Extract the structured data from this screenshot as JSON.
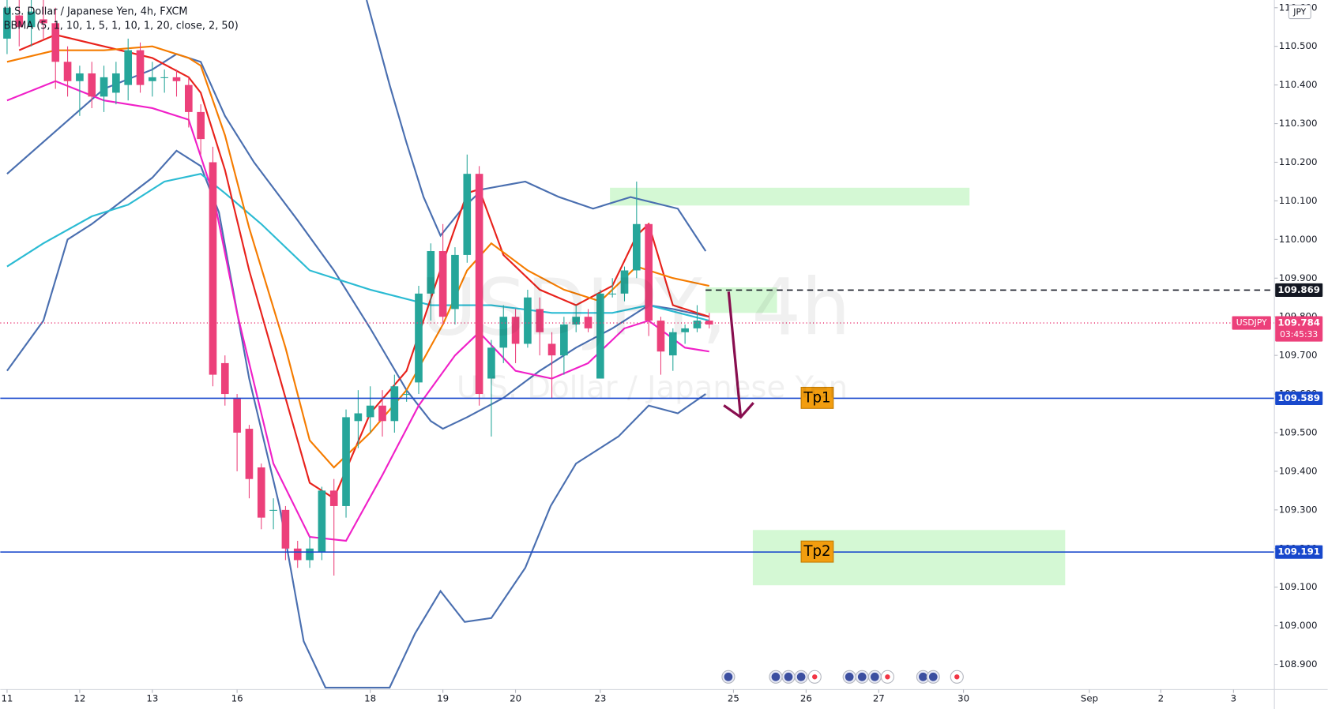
{
  "chart_data": {
    "type": "candlestick",
    "title": "U.S. Dollar / Japanese Yen, 4h, FXCM",
    "indicator": "BBMA (5, 1, 10, 1, 5, 1, 10, 1, 20, close, 2, 50)",
    "watermark": "USDJPY, 4h",
    "watermark_subtitle": "U.S. Dollar / Japanese Yen",
    "currency": "JPY",
    "up_color": "#26a69a",
    "down_color": "#ec407a",
    "xlim": [
      -0.56,
      104.68
    ],
    "ylim": [
      108.835,
      110.62
    ],
    "yticks": [
      {
        "value": 108.9,
        "label": "108.900"
      },
      {
        "value": 109.0,
        "label": "109.000"
      },
      {
        "value": 109.1,
        "label": "109.100"
      },
      {
        "value": 109.2,
        "label": "109.200"
      },
      {
        "value": 109.3,
        "label": "109.300"
      },
      {
        "value": 109.4,
        "label": "109.400"
      },
      {
        "value": 109.5,
        "label": "109.500"
      },
      {
        "value": 109.6,
        "label": "109.600"
      },
      {
        "value": 109.7,
        "label": "109.700"
      },
      {
        "value": 109.8,
        "label": "109.800"
      },
      {
        "value": 109.9,
        "label": "109.900"
      },
      {
        "value": 110.0,
        "label": "110.000"
      },
      {
        "value": 110.1,
        "label": "110.100"
      },
      {
        "value": 110.2,
        "label": "110.200"
      },
      {
        "value": 110.3,
        "label": "110.300"
      },
      {
        "value": 110.4,
        "label": "110.400"
      },
      {
        "value": 110.5,
        "label": "110.500"
      },
      {
        "value": 110.6,
        "label": "110.600"
      }
    ],
    "xticks": [
      {
        "value": 0,
        "label": "11"
      },
      {
        "value": 6,
        "label": "12"
      },
      {
        "value": 12,
        "label": "13"
      },
      {
        "value": 19,
        "label": "16"
      },
      {
        "value": 30,
        "label": "18"
      },
      {
        "value": 36,
        "label": "19"
      },
      {
        "value": 42,
        "label": "20"
      },
      {
        "value": 49,
        "label": "23"
      },
      {
        "value": 60,
        "label": "25"
      },
      {
        "value": 66,
        "label": "26"
      },
      {
        "value": 72,
        "label": "27"
      },
      {
        "value": 79,
        "label": "30"
      },
      {
        "value": 89.4,
        "label": "Sep"
      },
      {
        "value": 95.3,
        "label": "2"
      },
      {
        "value": 101.3,
        "label": "3"
      }
    ],
    "x": [
      0,
      1,
      2,
      3,
      4,
      5,
      6,
      7,
      8,
      9,
      10,
      11,
      12,
      13,
      14,
      15,
      16,
      17,
      18,
      19,
      20,
      21,
      22,
      23,
      24,
      25,
      26,
      27,
      28,
      29,
      30,
      31,
      32,
      33,
      34,
      35,
      36,
      37,
      38,
      39,
      40,
      41,
      42,
      43,
      44,
      45,
      46,
      47,
      48,
      49,
      50,
      51,
      52,
      53,
      54,
      55,
      56,
      57,
      58
    ],
    "open": [
      110.52,
      110.58,
      110.55,
      110.57,
      110.56,
      110.46,
      110.41,
      110.43,
      110.37,
      110.38,
      110.4,
      110.49,
      110.41,
      110.42,
      110.42,
      110.4,
      110.33,
      110.2,
      109.68,
      109.59,
      109.51,
      109.41,
      109.3,
      109.3,
      109.2,
      109.17,
      109.19,
      109.35,
      109.31,
      109.53,
      109.54,
      109.57,
      109.53,
      109.6,
      109.63,
      109.86,
      109.97,
      109.82,
      109.96,
      110.17,
      109.64,
      109.72,
      109.8,
      109.73,
      109.82,
      109.73,
      109.7,
      109.78,
      109.8,
      109.64,
      109.86,
      109.86,
      109.92,
      110.04,
      109.79,
      109.7,
      109.76,
      109.77,
      109.79
    ],
    "high": [
      110.62,
      110.62,
      110.62,
      110.62,
      110.6,
      110.5,
      110.45,
      110.46,
      110.45,
      110.46,
      110.52,
      110.51,
      110.46,
      110.44,
      110.44,
      110.42,
      110.35,
      110.24,
      109.7,
      109.6,
      109.52,
      109.42,
      109.33,
      109.31,
      109.22,
      109.23,
      109.36,
      109.38,
      109.56,
      109.61,
      109.62,
      109.61,
      109.65,
      109.61,
      109.88,
      109.99,
      110.04,
      109.98,
      110.22,
      110.19,
      109.74,
      109.83,
      109.82,
      109.87,
      109.85,
      109.76,
      109.8,
      109.83,
      109.82,
      109.87,
      109.9,
      109.93,
      110.15,
      110.04,
      109.8,
      109.77,
      109.78,
      109.83,
      109.81
    ],
    "low": [
      110.48,
      110.5,
      110.5,
      110.52,
      110.39,
      110.37,
      110.32,
      110.34,
      110.33,
      110.35,
      110.36,
      110.38,
      110.37,
      110.38,
      110.37,
      110.29,
      110.22,
      109.62,
      109.57,
      109.4,
      109.33,
      109.25,
      109.25,
      109.17,
      109.15,
      109.15,
      109.17,
      109.13,
      109.28,
      109.46,
      109.5,
      109.49,
      109.5,
      109.58,
      109.6,
      109.79,
      109.78,
      109.78,
      109.94,
      109.57,
      109.49,
      109.68,
      109.68,
      109.72,
      109.7,
      109.59,
      109.65,
      109.76,
      109.76,
      109.64,
      109.85,
      109.84,
      109.9,
      109.75,
      109.65,
      109.66,
      109.73,
      109.76,
      109.77
    ],
    "close": [
      110.6,
      110.55,
      110.59,
      110.56,
      110.46,
      110.41,
      110.43,
      110.37,
      110.42,
      110.43,
      110.49,
      110.4,
      110.42,
      110.42,
      110.41,
      110.33,
      110.26,
      109.65,
      109.6,
      109.5,
      109.38,
      109.28,
      109.3,
      109.2,
      109.17,
      109.2,
      109.35,
      109.31,
      109.54,
      109.55,
      109.57,
      109.53,
      109.62,
      109.6,
      109.86,
      109.97,
      109.8,
      109.96,
      110.17,
      109.6,
      109.72,
      109.8,
      109.73,
      109.85,
      109.76,
      109.7,
      109.78,
      109.8,
      109.77,
      109.86,
      109.86,
      109.92,
      110.04,
      109.79,
      109.71,
      109.76,
      109.77,
      109.79,
      109.78
    ],
    "overlays": [
      {
        "color": "#4a6fb0",
        "x": [
          29.7,
          31.6,
          33,
          34.4,
          35.8,
          37.6,
          39.3,
          42.8,
          45.6,
          48.4,
          51.5,
          55.4,
          57.7
        ],
        "values": [
          110.62,
          110.4,
          110.25,
          110.11,
          110.01,
          110.08,
          110.13,
          110.15,
          110.11,
          110.08,
          110.11,
          110.08,
          109.97
        ]
      },
      {
        "color": "#4a6fb0",
        "x": [
          0,
          4,
          8,
          12,
          14,
          16,
          18,
          20.4,
          24,
          27,
          30,
          33,
          35,
          36,
          38,
          41,
          44,
          47,
          50,
          53,
          55,
          58
        ],
        "values": [
          110.17,
          110.28,
          110.39,
          110.44,
          110.48,
          110.46,
          110.32,
          110.2,
          110.05,
          109.92,
          109.77,
          109.61,
          109.53,
          109.51,
          109.54,
          109.59,
          109.66,
          109.72,
          109.77,
          109.83,
          109.82,
          109.8
        ]
      },
      {
        "color": "#4a6fb0",
        "x": [
          0,
          3,
          5,
          7,
          12,
          14,
          16,
          17.5,
          20,
          22.5,
          24.5,
          26.3,
          31.6,
          33.7,
          35.8,
          37.8,
          40,
          42.8,
          44.9,
          47,
          50.5,
          53,
          55.4,
          57.7
        ],
        "values": [
          109.66,
          109.79,
          110.0,
          110.04,
          110.16,
          110.23,
          110.19,
          110.07,
          109.64,
          109.31,
          108.96,
          108.84,
          108.84,
          108.98,
          109.09,
          109.01,
          109.02,
          109.15,
          109.31,
          109.42,
          109.49,
          109.57,
          109.55,
          109.6
        ]
      },
      {
        "color": "#2bbbd3",
        "x": [
          0,
          3,
          7,
          10,
          13,
          16,
          18,
          21,
          25,
          30,
          35,
          40,
          45,
          50,
          53,
          58
        ],
        "values": [
          109.93,
          109.99,
          110.06,
          110.09,
          110.15,
          110.17,
          110.12,
          110.04,
          109.92,
          109.87,
          109.83,
          109.83,
          109.81,
          109.81,
          109.83,
          109.79
        ]
      },
      {
        "color": "#e8221c",
        "x": [
          1,
          4,
          8,
          12,
          15,
          16,
          18,
          20,
          23,
          25,
          27,
          30,
          33,
          36,
          38,
          39,
          41,
          44,
          47,
          50,
          52,
          53,
          55,
          58
        ],
        "values": [
          110.49,
          110.53,
          110.5,
          110.47,
          110.42,
          110.38,
          110.18,
          109.92,
          109.59,
          109.37,
          109.33,
          109.55,
          109.66,
          109.94,
          110.12,
          110.13,
          109.96,
          109.87,
          109.83,
          109.88,
          110.01,
          110.04,
          109.83,
          109.8
        ]
      },
      {
        "color": "#f57c00",
        "x": [
          0,
          4,
          8,
          12,
          15,
          16,
          18,
          20,
          23,
          25,
          27,
          30,
          33,
          36,
          38,
          40,
          43,
          46,
          49,
          52,
          55,
          58
        ],
        "values": [
          110.46,
          110.49,
          110.49,
          110.5,
          110.47,
          110.45,
          110.27,
          110.03,
          109.72,
          109.48,
          109.41,
          109.5,
          109.61,
          109.78,
          109.92,
          109.99,
          109.92,
          109.87,
          109.84,
          109.93,
          109.9,
          109.88
        ]
      },
      {
        "color": "#f020c8",
        "x": [
          0,
          4,
          8,
          12,
          15,
          17,
          19,
          22,
          25,
          28,
          31,
          34,
          37,
          39,
          42,
          45,
          48,
          51,
          53,
          56,
          58
        ],
        "values": [
          110.36,
          110.41,
          110.36,
          110.34,
          110.31,
          110.12,
          109.81,
          109.42,
          109.23,
          109.22,
          109.39,
          109.57,
          109.7,
          109.76,
          109.66,
          109.64,
          109.68,
          109.77,
          109.79,
          109.72,
          109.71
        ]
      }
    ],
    "zones": [
      {
        "color": "#ccf7cc",
        "x": [
          49.8,
          79.5
        ],
        "y": [
          110.088,
          110.134
        ]
      },
      {
        "color": "#ccf7cc",
        "x": [
          57.7,
          63.6
        ],
        "y": [
          109.81,
          109.876
        ]
      },
      {
        "color": "#ccf7cc",
        "x": [
          61.6,
          87.4
        ],
        "y": [
          109.105,
          109.248
        ]
      }
    ],
    "arrow": {
      "color": "#880e4f",
      "x": [
        59.6,
        60.6
      ],
      "y": [
        109.865,
        109.54
      ]
    },
    "levels": [
      {
        "value": 109.869,
        "color": "#131722",
        "style": "dashed",
        "x_start": 57.7
      },
      {
        "value": 109.784,
        "color": "#ec407a",
        "style": "dotted",
        "symbol": "USDJPY",
        "countdown": "03:45:33"
      },
      {
        "value": 109.589,
        "color": "#1848cc",
        "style": "solid",
        "label": "Tp1"
      },
      {
        "value": 109.191,
        "color": "#1848cc",
        "style": "solid",
        "label": "Tp2"
      }
    ]
  }
}
